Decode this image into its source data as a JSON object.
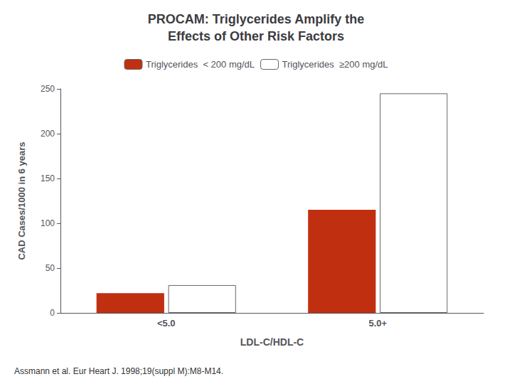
{
  "chart_data": {
    "type": "bar",
    "title": "PROCAM: Triglycerides Amplify the\nEffects of Other Risk Factors",
    "categories": [
      "<5.0",
      "5.0+"
    ],
    "series": [
      {
        "name": "Triglycerides  < 200 mg/dL",
        "color": "#c03010",
        "values": [
          22,
          115
        ]
      },
      {
        "name": "Triglycerides  ≥200 mg/dL",
        "color": "#ffffff",
        "values": [
          31,
          245
        ]
      }
    ],
    "xlabel": "LDL-C/HDL-C",
    "ylabel": "CAD Cases/1000 in 6 years",
    "ylim": [
      0,
      250
    ],
    "yticks": [
      0,
      50,
      100,
      150,
      200,
      250
    ],
    "grid": false,
    "legend": "top",
    "annotations": [
      "Assmann et al. Eur Heart J. 1998;19(suppl M):M8-M14."
    ]
  }
}
